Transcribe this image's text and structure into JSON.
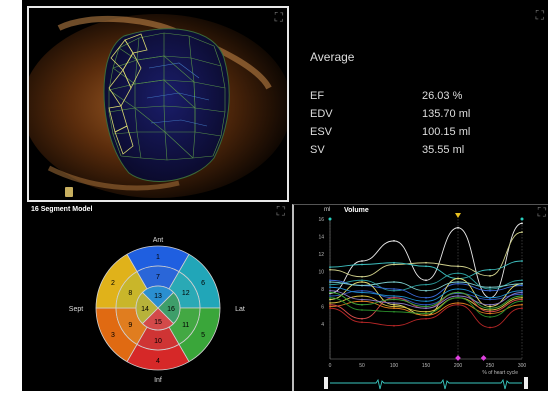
{
  "stats": {
    "title": "Average",
    "rows": [
      {
        "label": "EF",
        "value": "26.03 %"
      },
      {
        "label": "EDV",
        "value": "135.70 ml"
      },
      {
        "label": "ESV",
        "value": "100.15 ml"
      },
      {
        "label": "SV",
        "value": "35.55 ml"
      }
    ]
  },
  "segment_model": {
    "title": "16 Segment Model",
    "labels": {
      "top": "Ant",
      "left": "Sept",
      "right": "Lat",
      "bottom": "Inf"
    },
    "segments": [
      {
        "id": "1",
        "color": "#1f5fe0"
      },
      {
        "id": "2",
        "color": "#e0b21a"
      },
      {
        "id": "3",
        "color": "#e06a12"
      },
      {
        "id": "4",
        "color": "#d62828"
      },
      {
        "id": "5",
        "color": "#3aa63a"
      },
      {
        "id": "6",
        "color": "#21a6b8"
      },
      {
        "id": "7",
        "color": "#2a66d8"
      },
      {
        "id": "8",
        "color": "#c9b62a"
      },
      {
        "id": "9",
        "color": "#e07d1f"
      },
      {
        "id": "10",
        "color": "#cf3434"
      },
      {
        "id": "11",
        "color": "#43a843"
      },
      {
        "id": "12",
        "color": "#2aa9b5"
      },
      {
        "id": "13",
        "color": "#2a8fd0"
      },
      {
        "id": "14",
        "color": "#b7b23a"
      },
      {
        "id": "15",
        "color": "#d34a4a"
      },
      {
        "id": "16",
        "color": "#3e9e6a"
      }
    ]
  },
  "volume_chart": {
    "title": "Volume",
    "unit": "ml",
    "xlabel": "% of heart cycle",
    "chart_data": {
      "type": "line",
      "x": [
        0,
        50,
        100,
        150,
        200,
        250,
        300
      ],
      "ylim": [
        0,
        16
      ],
      "xlim": [
        0,
        300
      ],
      "yticks": [
        "16",
        "14",
        "12",
        "10",
        "8",
        "6",
        "4"
      ],
      "xticks": [
        "0",
        "50",
        "100",
        "150",
        "200",
        "250",
        "300"
      ],
      "series": [
        {
          "color": "#e8e8e8",
          "values": [
            7.5,
            11.2,
            13.5,
            9.0,
            15.0,
            7.0,
            15.5
          ]
        },
        {
          "color": "#cfcf8a",
          "values": [
            10.2,
            9.4,
            10.8,
            11.0,
            10.6,
            9.5,
            14.5
          ]
        },
        {
          "color": "#3ec0c0",
          "values": [
            10.5,
            10.8,
            11.0,
            10.6,
            9.2,
            10.2,
            11.2
          ]
        },
        {
          "color": "#2a9a9a",
          "values": [
            8.5,
            9.0,
            7.8,
            8.5,
            9.8,
            8.0,
            9.0
          ]
        },
        {
          "color": "#3a6ad8",
          "values": [
            9.0,
            8.4,
            8.0,
            7.0,
            8.6,
            7.8,
            8.4
          ]
        },
        {
          "color": "#2f56c0",
          "values": [
            7.2,
            7.8,
            7.0,
            6.2,
            7.5,
            6.8,
            7.4
          ]
        },
        {
          "color": "#e8e070",
          "values": [
            6.8,
            8.8,
            6.2,
            5.0,
            9.2,
            6.0,
            8.6
          ]
        },
        {
          "color": "#d8c040",
          "values": [
            6.4,
            7.2,
            6.0,
            5.4,
            7.0,
            5.6,
            7.0
          ]
        },
        {
          "color": "#e07d1f",
          "values": [
            6.0,
            6.6,
            5.8,
            5.0,
            6.4,
            5.2,
            6.2
          ]
        },
        {
          "color": "#d34a4a",
          "values": [
            6.2,
            4.6,
            7.0,
            5.8,
            7.6,
            5.4,
            6.8
          ]
        },
        {
          "color": "#b52626",
          "values": [
            5.8,
            4.2,
            3.8,
            4.6,
            6.2,
            3.6,
            5.8
          ]
        },
        {
          "color": "#3aa63a",
          "values": [
            7.6,
            6.2,
            6.8,
            6.0,
            7.6,
            5.8,
            7.2
          ]
        },
        {
          "color": "#2b8d2b",
          "values": [
            7.0,
            5.6,
            5.4,
            5.2,
            7.0,
            4.8,
            6.6
          ]
        },
        {
          "color": "#1f8fd0",
          "values": [
            8.2,
            7.6,
            7.2,
            6.6,
            8.0,
            7.0,
            7.8
          ]
        },
        {
          "color": "#7fd0d0",
          "values": [
            8.8,
            8.4,
            8.8,
            7.8,
            8.8,
            8.2,
            8.6
          ]
        },
        {
          "color": "#8a7ac8",
          "values": [
            7.8,
            6.8,
            6.4,
            5.8,
            7.2,
            6.2,
            7.6
          ]
        }
      ]
    }
  }
}
